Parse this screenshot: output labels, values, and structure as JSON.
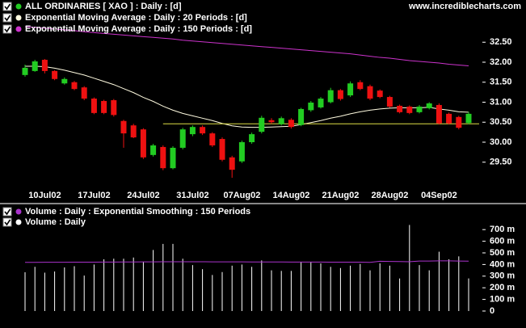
{
  "brand": "www.incrediblecharts.com",
  "chart_data": [
    {
      "type": "candlestick",
      "name": "ALL ORDINARIES [ XAO ] : Daily : [d]",
      "up_color": "#22cc22",
      "down_color": "#ee1111",
      "categories": [
        null,
        null,
        "10Jul02",
        null,
        null,
        null,
        null,
        "17Jul02",
        null,
        null,
        null,
        null,
        "24Jul02",
        null,
        null,
        null,
        null,
        "31Jul02",
        null,
        null,
        null,
        null,
        "07Aug02",
        null,
        null,
        null,
        null,
        "14Aug02",
        null,
        null,
        null,
        null,
        "21Aug02",
        null,
        null,
        null,
        null,
        "28Aug02",
        null,
        null,
        null,
        null,
        "04Sep02",
        null,
        null,
        null
      ],
      "open": [
        31.68,
        31.78,
        32.06,
        31.78,
        31.47,
        31.5,
        31.37,
        31.09,
        31.03,
        31.05,
        30.53,
        30.42,
        30.32,
        29.68,
        29.88,
        29.35,
        29.86,
        30.2,
        30.38,
        30.22,
        30.08,
        29.62,
        29.52,
        30.0,
        30.26,
        30.55,
        30.45,
        30.56,
        30.43,
        30.8,
        30.87,
        31.0,
        31.3,
        31.17,
        31.5,
        31.4,
        31.29,
        31.13,
        30.91,
        30.89,
        30.75,
        30.85,
        30.93,
        30.71,
        30.63,
        30.48
      ],
      "high": [
        31.94,
        32.06,
        32.08,
        31.8,
        31.62,
        31.53,
        31.4,
        31.12,
        31.06,
        31.08,
        30.56,
        30.46,
        30.35,
        29.96,
        29.92,
        29.9,
        30.36,
        30.42,
        30.42,
        30.25,
        30.12,
        29.66,
        30.04,
        30.24,
        30.66,
        30.6,
        30.64,
        30.6,
        30.86,
        31.03,
        31.13,
        31.36,
        31.33,
        31.52,
        31.55,
        31.44,
        31.32,
        31.16,
        30.94,
        30.92,
        30.93,
        31.0,
        30.97,
        30.74,
        30.66,
        30.76
      ],
      "low": [
        31.64,
        31.76,
        31.72,
        31.55,
        31.44,
        31.3,
        31.05,
        30.7,
        30.7,
        30.64,
        29.86,
        30.1,
        29.58,
        29.64,
        29.3,
        29.32,
        29.82,
        30.15,
        30.18,
        29.88,
        29.52,
        29.11,
        29.48,
        29.96,
        30.22,
        30.46,
        30.42,
        30.34,
        30.4,
        30.76,
        30.84,
        30.97,
        31.04,
        31.13,
        31.3,
        31.05,
        31.1,
        30.86,
        30.72,
        30.7,
        30.72,
        30.82,
        30.44,
        30.44,
        30.32,
        30.45
      ],
      "close": [
        31.86,
        32.02,
        31.78,
        31.58,
        31.58,
        31.33,
        31.09,
        30.73,
        30.73,
        30.68,
        30.22,
        30.12,
        29.62,
        29.92,
        29.35,
        29.86,
        30.32,
        30.38,
        30.22,
        29.92,
        29.56,
        29.31,
        30.0,
        30.2,
        30.61,
        30.5,
        30.6,
        30.38,
        30.83,
        30.99,
        31.09,
        31.3,
        31.08,
        31.47,
        31.33,
        31.09,
        31.13,
        30.89,
        30.75,
        30.73,
        30.89,
        30.97,
        30.47,
        30.47,
        30.36,
        30.71
      ],
      "series": [
        {
          "name": "Exponential Moving Average : Daily : 20 Periods : [d]",
          "color": "#fffbe0",
          "values": [
            31.9,
            31.9,
            31.89,
            31.85,
            31.8,
            31.74,
            31.68,
            31.6,
            31.52,
            31.44,
            31.34,
            31.24,
            31.12,
            31.02,
            30.9,
            30.8,
            30.72,
            30.66,
            30.6,
            30.54,
            30.47,
            30.41,
            30.38,
            30.37,
            30.37,
            30.38,
            30.39,
            30.4,
            30.44,
            30.49,
            30.54,
            30.6,
            30.65,
            30.71,
            30.76,
            30.8,
            30.83,
            30.85,
            30.86,
            30.86,
            30.86,
            30.87,
            30.83,
            30.8,
            30.76,
            30.75
          ]
        },
        {
          "name": "Exponential Moving Average : Daily : 150 Periods : [d]",
          "color": "#cc33cc",
          "values": [
            32.89,
            32.87,
            32.85,
            32.83,
            32.81,
            32.79,
            32.76,
            32.74,
            32.72,
            32.7,
            32.68,
            32.66,
            32.64,
            32.62,
            32.6,
            32.58,
            32.55,
            32.53,
            32.51,
            32.49,
            32.47,
            32.45,
            32.43,
            32.41,
            32.39,
            32.37,
            32.35,
            32.33,
            32.31,
            32.29,
            32.27,
            32.25,
            32.23,
            32.21,
            32.18,
            32.15,
            32.12,
            32.1,
            32.07,
            32.04,
            32.02,
            32.0,
            31.98,
            31.95,
            31.93,
            31.91
          ]
        }
      ],
      "hline": {
        "value": 30.46,
        "color": "#dddd44"
      },
      "ylim": [
        29.0,
        33.3
      ],
      "yticks": [
        {
          "value": 29.5,
          "label": "29.50"
        },
        {
          "value": 30.0,
          "label": "30.00"
        },
        {
          "value": 30.5,
          "label": "30.50"
        },
        {
          "value": 31.0,
          "label": "31.00"
        },
        {
          "value": 31.5,
          "label": "31.50"
        },
        {
          "value": 32.0,
          "label": "32.00"
        },
        {
          "value": 32.5,
          "label": "32.50"
        }
      ]
    },
    {
      "type": "bar",
      "series": [
        {
          "name": "Volume : Daily : Exponential Smoothing : 150 Periods",
          "color": "#aa33cc",
          "values": [
            418,
            418,
            419,
            419,
            419,
            420,
            420,
            420,
            421,
            421,
            422,
            422,
            423,
            423,
            424,
            424,
            424,
            424,
            424,
            423,
            423,
            423,
            423,
            422,
            422,
            422,
            422,
            421,
            421,
            421,
            421,
            420,
            420,
            420,
            420,
            418,
            428,
            426,
            425,
            424,
            430,
            430,
            431,
            431,
            430,
            429
          ]
        },
        {
          "name": "Volume : Daily",
          "color": "#ffffff",
          "values": [
            333,
            380,
            330,
            340,
            375,
            385,
            305,
            400,
            445,
            450,
            450,
            460,
            420,
            525,
            577,
            577,
            450,
            395,
            360,
            310,
            335,
            390,
            400,
            380,
            435,
            350,
            345,
            345,
            420,
            420,
            410,
            380,
            370,
            390,
            405,
            350,
            410,
            390,
            280,
            740,
            395,
            350,
            510,
            445,
            470,
            280
          ]
        }
      ],
      "ylim": [
        0,
        750
      ],
      "yticks": [
        0,
        {
          "value": 100,
          "label": "100 m"
        },
        {
          "value": 200,
          "label": "200 m"
        },
        {
          "value": 300,
          "label": "300 m"
        },
        {
          "value": 400,
          "label": "400 m"
        },
        {
          "value": 500,
          "label": "500 m"
        },
        {
          "value": 600,
          "label": "600 m"
        },
        {
          "value": 700,
          "label": "700 m"
        }
      ]
    }
  ]
}
